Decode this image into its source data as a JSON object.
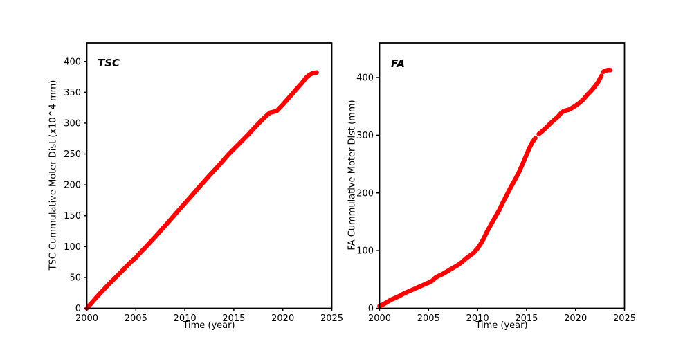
{
  "figure": {
    "background": "#ffffff",
    "axes_color": "#000000"
  },
  "chart_data": [
    {
      "type": "scatter",
      "panel": "TSC",
      "annotation": "TSC",
      "xlabel": "Time (year)",
      "ylabel": "TSC Cummulative Moter Dist (x10^4 mm)",
      "xlim": [
        2000,
        2025
      ],
      "ylim": [
        0,
        430
      ],
      "xticks": [
        2000,
        2005,
        2010,
        2015,
        2020,
        2025
      ],
      "yticks": [
        0,
        50,
        100,
        150,
        200,
        250,
        300,
        350,
        400
      ],
      "grid": false,
      "legend": null,
      "marker_color": "#ff0000",
      "marker_width_px": 6.5,
      "segments": [
        [
          [
            2000.0,
            0
          ],
          [
            2000.5,
            9
          ],
          [
            2001.0,
            18
          ],
          [
            2001.5,
            26.5
          ],
          [
            2002.0,
            35
          ],
          [
            2002.5,
            43
          ],
          [
            2003.0,
            51
          ],
          [
            2003.5,
            59
          ],
          [
            2004.0,
            67
          ],
          [
            2004.5,
            75
          ],
          [
            2005.0,
            82
          ],
          [
            2005.5,
            91
          ],
          [
            2006.0,
            99
          ],
          [
            2006.5,
            107.5
          ],
          [
            2007.0,
            116
          ],
          [
            2007.5,
            125
          ],
          [
            2008.0,
            134
          ],
          [
            2008.5,
            143
          ],
          [
            2009.0,
            152
          ],
          [
            2009.5,
            161
          ],
          [
            2010.0,
            170
          ],
          [
            2010.5,
            179
          ],
          [
            2011.0,
            188
          ],
          [
            2011.5,
            197
          ],
          [
            2012.0,
            206
          ],
          [
            2012.5,
            215
          ],
          [
            2013.0,
            223.5
          ],
          [
            2013.5,
            232
          ],
          [
            2014.0,
            241
          ],
          [
            2014.5,
            250
          ],
          [
            2015.0,
            258
          ],
          [
            2015.5,
            266
          ],
          [
            2016.0,
            274
          ],
          [
            2016.5,
            282
          ],
          [
            2017.0,
            290.5
          ],
          [
            2017.5,
            299
          ],
          [
            2018.0,
            307
          ],
          [
            2018.4,
            313
          ],
          [
            2018.7,
            317
          ],
          [
            2019.1,
            318.5
          ],
          [
            2019.4,
            320
          ],
          [
            2020.0,
            330
          ],
          [
            2020.5,
            339
          ],
          [
            2021.0,
            348
          ],
          [
            2021.5,
            357
          ],
          [
            2022.0,
            366
          ],
          [
            2022.4,
            374
          ],
          [
            2022.7,
            378
          ],
          [
            2023.0,
            380.5
          ],
          [
            2023.2,
            381.5
          ],
          [
            2023.45,
            382
          ]
        ]
      ]
    },
    {
      "type": "scatter",
      "panel": "FA",
      "annotation": "FA",
      "xlabel": "Time (year)",
      "ylabel": "FA Cummulative Moter Dist (mm)",
      "xlim": [
        2000,
        2025
      ],
      "ylim": [
        0,
        460
      ],
      "xticks": [
        2000,
        2005,
        2010,
        2015,
        2020,
        2025
      ],
      "yticks": [
        0,
        100,
        200,
        300,
        400
      ],
      "grid": false,
      "legend": null,
      "marker_color": "#ff0000",
      "marker_width_px": 6.5,
      "segments": [
        [
          [
            2000.0,
            4
          ],
          [
            2000.4,
            7
          ],
          [
            2000.8,
            11
          ],
          [
            2001.2,
            15
          ],
          [
            2001.6,
            18
          ],
          [
            2002.0,
            21
          ],
          [
            2002.4,
            25
          ],
          [
            2002.8,
            28
          ],
          [
            2003.2,
            31
          ],
          [
            2003.6,
            34
          ],
          [
            2004.0,
            37
          ],
          [
            2004.4,
            40
          ],
          [
            2004.8,
            43
          ],
          [
            2005.1,
            45
          ],
          [
            2005.4,
            48
          ],
          [
            2005.7,
            53
          ],
          [
            2006.0,
            56
          ],
          [
            2006.4,
            59
          ],
          [
            2006.8,
            63
          ],
          [
            2007.2,
            67
          ],
          [
            2007.6,
            71
          ],
          [
            2008.0,
            75
          ],
          [
            2008.4,
            80
          ],
          [
            2008.8,
            86
          ],
          [
            2009.2,
            91
          ],
          [
            2009.6,
            96
          ],
          [
            2010.0,
            104
          ],
          [
            2010.3,
            111
          ],
          [
            2010.6,
            120
          ],
          [
            2011.0,
            134
          ],
          [
            2011.4,
            146
          ],
          [
            2011.8,
            158
          ],
          [
            2012.2,
            170
          ],
          [
            2012.6,
            184
          ],
          [
            2013.0,
            197
          ],
          [
            2013.4,
            210
          ],
          [
            2013.8,
            222
          ],
          [
            2014.2,
            235
          ],
          [
            2014.6,
            250
          ],
          [
            2015.0,
            266
          ],
          [
            2015.3,
            278
          ],
          [
            2015.6,
            288
          ],
          [
            2015.9,
            295
          ]
        ],
        [
          [
            2016.25,
            302
          ],
          [
            2016.6,
            307
          ],
          [
            2017.0,
            313
          ],
          [
            2017.4,
            320
          ],
          [
            2017.8,
            326
          ],
          [
            2018.2,
            332
          ],
          [
            2018.5,
            338
          ],
          [
            2018.8,
            342
          ],
          [
            2019.3,
            344
          ],
          [
            2019.7,
            348
          ],
          [
            2020.0,
            351
          ],
          [
            2020.4,
            356
          ],
          [
            2020.8,
            362
          ],
          [
            2021.2,
            370
          ],
          [
            2021.6,
            377
          ],
          [
            2022.0,
            385
          ],
          [
            2022.3,
            392
          ],
          [
            2022.55,
            400
          ],
          [
            2022.65,
            403
          ]
        ],
        [
          [
            2022.85,
            410
          ],
          [
            2023.1,
            412
          ],
          [
            2023.3,
            413
          ],
          [
            2023.55,
            413
          ]
        ]
      ]
    }
  ]
}
